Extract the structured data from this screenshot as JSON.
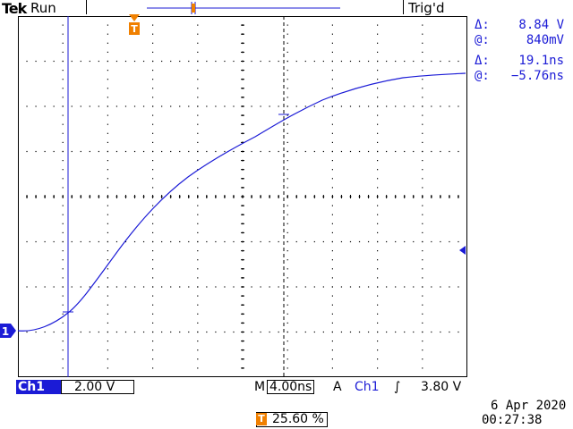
{
  "header": {
    "brand": "Tek",
    "status": "Run",
    "trigger_state": "Trig'd"
  },
  "cursor_readout": {
    "voltage_delta_symbol": "Δ:",
    "voltage_delta": "8.84 V",
    "voltage_at_symbol": "@:",
    "voltage_at": "840mV",
    "time_delta_symbol": "Δ:",
    "time_delta": "19.1ns",
    "time_at_symbol": "@:",
    "time_at": "−5.76ns"
  },
  "footer": {
    "channel": "Ch1",
    "volts_per_div": "2.00 V",
    "timebase_prefix": "M",
    "timebase": "4.00ns",
    "trigger_mode": "A",
    "trigger_channel": "Ch1",
    "trigger_slope_symbol": "∫",
    "trigger_level": "3.80 V",
    "date": "6 Apr  2020",
    "time": "00:27:38",
    "trigger_position": "25.60 %",
    "trigger_marker": "T",
    "channel_marker": "1"
  },
  "colors": {
    "trace": "#1b1bd6",
    "trigger_marker": "#f08000",
    "grid": "#000000"
  }
}
